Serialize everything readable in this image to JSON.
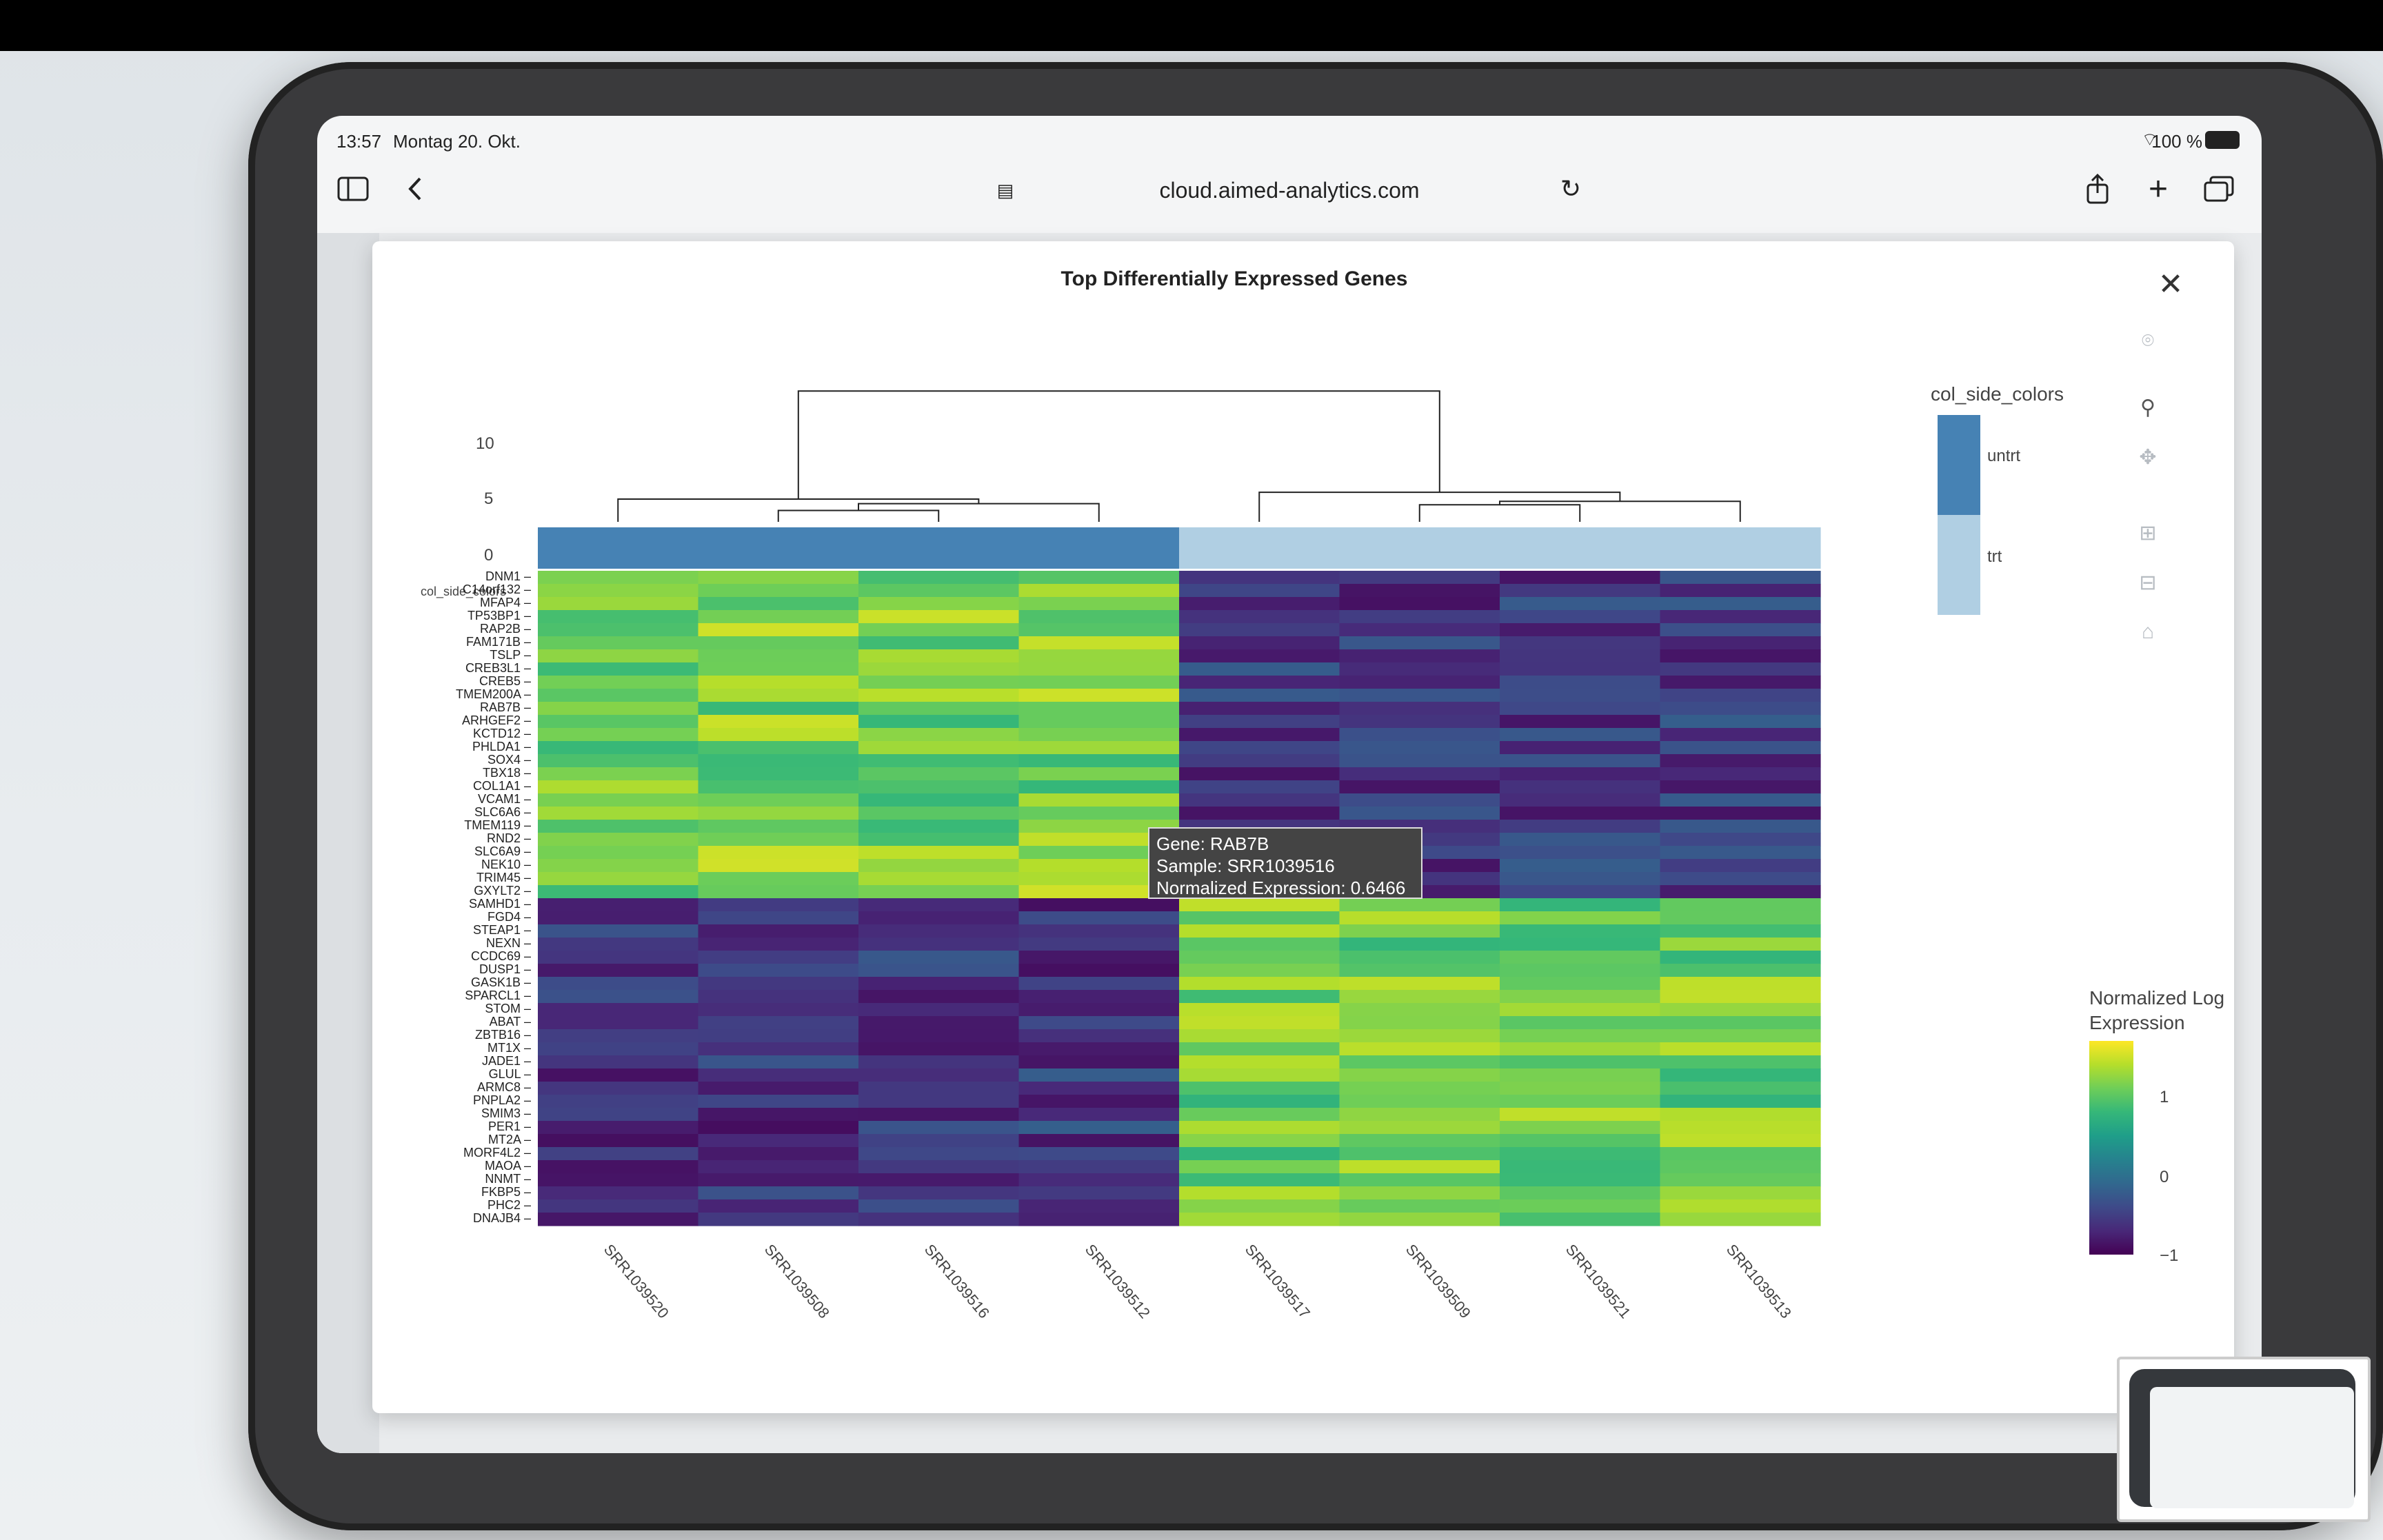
{
  "status_bar": {
    "time": "13:57",
    "date": "Montag 20. Okt.",
    "battery": "100 %"
  },
  "browser": {
    "url": "cloud.aimed-analytics.com"
  },
  "chart": {
    "title": "Top Differentially Expressed Genes",
    "dendro_ticks": [
      "10",
      "5",
      "0"
    ],
    "side_color_label": "col_side_colors",
    "legend_groups_title": "col_side_colors",
    "legend_groups": [
      "untrt",
      "trt"
    ],
    "colorbar_title_1": "Normalized Log",
    "colorbar_title_2": "Expression",
    "colorbar_ticks": [
      "1",
      "0",
      "−1"
    ],
    "tooltip": {
      "gene": "Gene: RAB7B",
      "sample": "Sample: SRR1039516",
      "value": "Normalized Expression:  0.6466"
    }
  },
  "chart_data": {
    "type": "heatmap",
    "title": "Top Differentially Expressed Genes",
    "colorbar": {
      "title": "Normalized Log Expression",
      "ticks": [
        1,
        0,
        -1
      ]
    },
    "groups": {
      "untrt": "#4682b4",
      "trt": "#b0cfe3"
    },
    "samples": [
      "SRR1039520",
      "SRR1039508",
      "SRR1039516",
      "SRR1039512",
      "SRR1039517",
      "SRR1039509",
      "SRR1039521",
      "SRR1039513"
    ],
    "sample_groups": [
      "untrt",
      "untrt",
      "untrt",
      "untrt",
      "trt",
      "trt",
      "trt",
      "trt"
    ],
    "genes": [
      "DNM1",
      "C14orf132",
      "MFAP4",
      "TP53BP1",
      "RAP2B",
      "FAM171B",
      "TSLP",
      "CREB3L1",
      "CREB5",
      "TMEM200A",
      "RAB7B",
      "ARHGEF2",
      "KCTD12",
      "PHLDA1",
      "SOX4",
      "TBX18",
      "COL1A1",
      "VCAM1",
      "SLC6A6",
      "TMEM119",
      "RND2",
      "SLC6A9",
      "NEK10",
      "TRIM45",
      "GXYLT2",
      "SAMHD1",
      "FGD4",
      "STEAP1",
      "NEXN",
      "CCDC69",
      "DUSP1",
      "GASK1B",
      "SPARCL1",
      "STOM",
      "ABAT",
      "ZBTB16",
      "MT1X",
      "JADE1",
      "GLUL",
      "ARMC8",
      "PNPLA2",
      "SMIM3",
      "PER1",
      "MT2A",
      "MORF4L2",
      "MAOA",
      "NNMT",
      "FKBP5",
      "PHC2",
      "DNAJB4"
    ],
    "top_block_untrt_mean": 0.9,
    "top_block_trt_mean": -1.0,
    "bottom_block_untrt_mean": -1.0,
    "bottom_block_trt_mean": 0.85
  }
}
